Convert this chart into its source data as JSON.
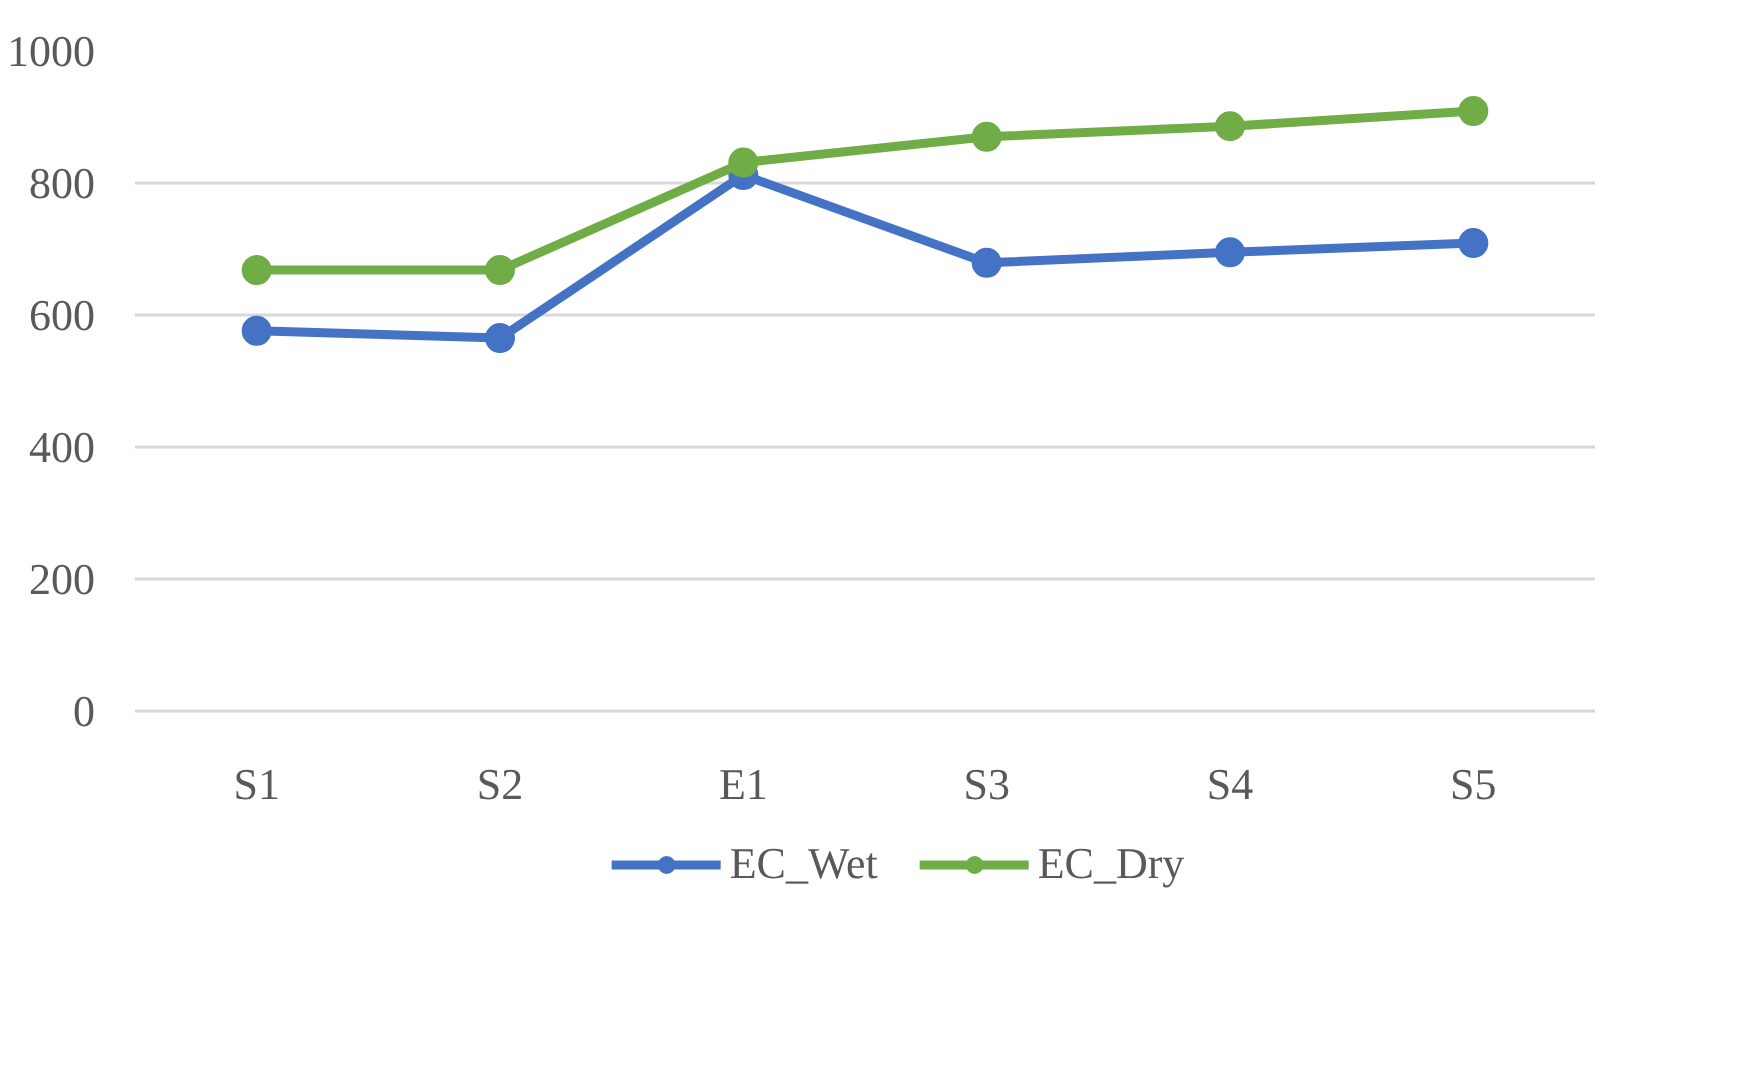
{
  "chart_data": {
    "type": "line",
    "categories": [
      "S1",
      "S2",
      "E1",
      "S3",
      "S4",
      "S5"
    ],
    "series": [
      {
        "name": "EC_Wet",
        "color": "#4472c4",
        "values": [
          576,
          565,
          812,
          679,
          695,
          709
        ]
      },
      {
        "name": "EC_Dry",
        "color": "#70ad47",
        "values": [
          668,
          668,
          831,
          870,
          886,
          909
        ]
      }
    ],
    "ylim": [
      0,
      1000
    ],
    "yticks": [
      0,
      200,
      400,
      600,
      800,
      1000
    ],
    "grid": "y",
    "legend": "bottom",
    "marker": "circle",
    "line_style": "solid"
  }
}
